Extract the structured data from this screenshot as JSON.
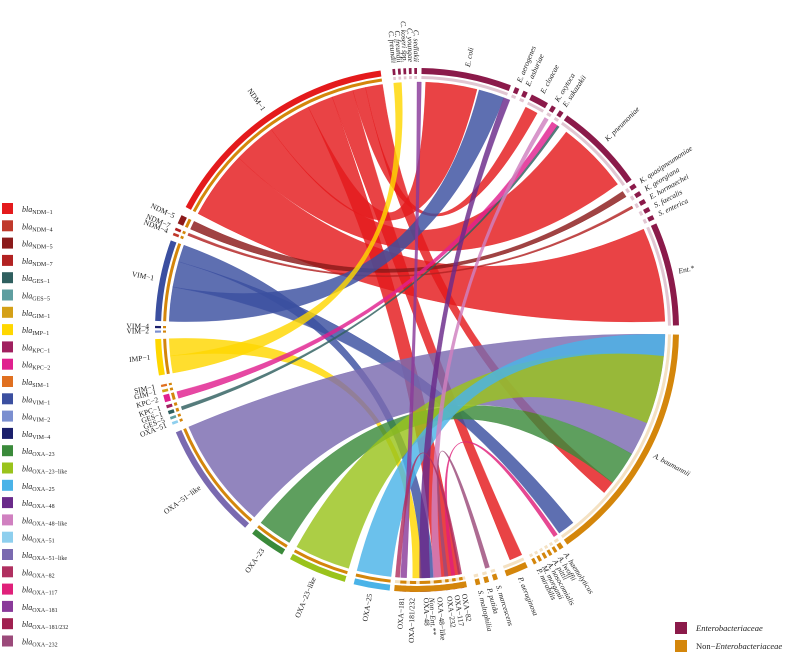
{
  "gene_legend": [
    {
      "prefix": "bla",
      "sub": "NDM−1",
      "color": "#e41a1c"
    },
    {
      "prefix": "bla",
      "sub": "NDM−4",
      "color": "#c0392b"
    },
    {
      "prefix": "bla",
      "sub": "NDM−5",
      "color": "#8b1a1a"
    },
    {
      "prefix": "bla",
      "sub": "NDM−7",
      "color": "#b22222"
    },
    {
      "prefix": "bla",
      "sub": "GES−1",
      "color": "#2f5f5f"
    },
    {
      "prefix": "bla",
      "sub": "GES−5",
      "color": "#5f9ea0"
    },
    {
      "prefix": "bla",
      "sub": "GIM−1",
      "color": "#d4a017"
    },
    {
      "prefix": "bla",
      "sub": "IMP−1",
      "color": "#ffd700"
    },
    {
      "prefix": "bla",
      "sub": "KPC−1",
      "color": "#a0205f"
    },
    {
      "prefix": "bla",
      "sub": "KPC−2",
      "color": "#e0208f"
    },
    {
      "prefix": "bla",
      "sub": "SIM−1",
      "color": "#e07020"
    },
    {
      "prefix": "bla",
      "sub": "VIM−1",
      "color": "#3b4fa0"
    },
    {
      "prefix": "bla",
      "sub": "VIM−2",
      "color": "#7b8fd0"
    },
    {
      "prefix": "bla",
      "sub": "VIM−4",
      "color": "#1a1f6b"
    },
    {
      "prefix": "bla",
      "sub": "OXA−23",
      "color": "#3a8a3a"
    },
    {
      "prefix": "bla",
      "sub": "OXA−23−like",
      "color": "#9ac31c"
    },
    {
      "prefix": "bla",
      "sub": "OXA−25",
      "color": "#4ab3e8"
    },
    {
      "prefix": "bla",
      "sub": "OXA−48",
      "color": "#6a2a8a"
    },
    {
      "prefix": "bla",
      "sub": "OXA−48−like",
      "color": "#d080c0"
    },
    {
      "prefix": "bla",
      "sub": "OXA−51",
      "color": "#8ecfee"
    },
    {
      "prefix": "bla",
      "sub": "OXA−51−like",
      "color": "#7a6ab0"
    },
    {
      "prefix": "bla",
      "sub": "OXA−82",
      "color": "#b03060"
    },
    {
      "prefix": "bla",
      "sub": "OXA−117",
      "color": "#e0207a"
    },
    {
      "prefix": "bla",
      "sub": "OXA−181",
      "color": "#8a3a9a"
    },
    {
      "prefix": "bla",
      "sub": "OXA−181/232",
      "color": "#a02050"
    },
    {
      "prefix": "bla",
      "sub": "OXA−232",
      "color": "#9b4a7a"
    }
  ],
  "category_legend": [
    {
      "label": "Enterobacteriaceae",
      "color": "#8b1a4a",
      "italic": true,
      "prefix": ""
    },
    {
      "label": "Enterobacteriaceae",
      "color": "#d4860b",
      "italic": true,
      "prefix": "Non−"
    }
  ],
  "gene_arcs": [
    {
      "label": "NDM−1",
      "start": -62,
      "end": -8,
      "color": "#e41a1c"
    },
    {
      "label": "NDM−5",
      "start": -66,
      "end": -64,
      "color": "#8b1a1a"
    },
    {
      "label": "NDM−7",
      "start": -67.6,
      "end": -67,
      "color": "#b22222"
    },
    {
      "label": "NDM−4",
      "start": -68.8,
      "end": -68.2,
      "color": "#c0392b"
    },
    {
      "label": "VIM−1",
      "start": -88,
      "end": -70,
      "color": "#3b4fa0"
    },
    {
      "label": "VIM−4",
      "start": -89.6,
      "end": -89.1,
      "color": "#1a1f6b"
    },
    {
      "label": "VIM−2",
      "start": -90.6,
      "end": -90.1,
      "color": "#7b8fd0"
    },
    {
      "label": "IMP−1",
      "start": -100,
      "end": -92,
      "color": "#ffd700"
    },
    {
      "label": "SIM−1",
      "start": -102.6,
      "end": -102.1,
      "color": "#e07020"
    },
    {
      "label": "GIM−1",
      "start": -103.8,
      "end": -103.2,
      "color": "#d4a017"
    },
    {
      "label": "KPC−2",
      "start": -106,
      "end": -104.4,
      "color": "#e0208f"
    },
    {
      "label": "KPC−1",
      "start": -107.4,
      "end": -106.7,
      "color": "#a0205f"
    },
    {
      "label": "GES−1",
      "start": -108.8,
      "end": -108,
      "color": "#2f5f5f"
    },
    {
      "label": "GES−5",
      "start": -110,
      "end": -109.4,
      "color": "#5f9ea0"
    },
    {
      "label": "OXA−51",
      "start": -111.2,
      "end": -110.6,
      "color": "#8ecfee"
    },
    {
      "label": "OXA−51−like",
      "start": -139,
      "end": -113,
      "color": "#7a6ab0"
    },
    {
      "label": "OXA−23",
      "start": -149,
      "end": -141,
      "color": "#3a8a3a"
    },
    {
      "label": "OXA−23−like",
      "start": -164,
      "end": -151,
      "color": "#9ac31c"
    },
    {
      "label": "OXA−25",
      "start": -174,
      "end": -166,
      "color": "#4ab3e8"
    },
    {
      "label": "OXA−181",
      "start": -177.6,
      "end": -176.2,
      "color": "#8a3a9a"
    },
    {
      "label": "OXA−181/232",
      "start": -179.8,
      "end": -178.4,
      "color": "#a02050"
    },
    {
      "label": "OXA−48",
      "start": -183,
      "end": -180.6,
      "color": "#6a2a8a"
    },
    {
      "label": "OXA−48−like",
      "start": -185.6,
      "end": -183.8,
      "color": "#d080c0"
    },
    {
      "label": "OXA−232",
      "start": -187.2,
      "end": -186.4,
      "color": "#9b4a7a"
    },
    {
      "label": "OXA−117",
      "start": -188.8,
      "end": -188,
      "color": "#e0207a"
    },
    {
      "label": "OXA−82",
      "start": -190.4,
      "end": -189.6,
      "color": "#b03060"
    }
  ],
  "organism_arcs": [
    {
      "label": "C. freundii",
      "start": -5.4,
      "end": -4.8,
      "group": "ent"
    },
    {
      "label": "C. freundii",
      "start": -4.2,
      "end": -3.6,
      "group": "ent"
    },
    {
      "label": "C. koseri spp.",
      "start": -3,
      "end": -2.4,
      "group": "ent"
    },
    {
      "label": "C. youngae",
      "start": -1.8,
      "end": -1.2,
      "group": "ent"
    },
    {
      "label": "C. sedlakii",
      "start": -0.6,
      "end": 0,
      "group": "ent"
    },
    {
      "label": "E. coli",
      "start": 1,
      "end": 21,
      "group": "ent"
    },
    {
      "label": "E. aerogenes",
      "start": 22,
      "end": 23,
      "group": "ent"
    },
    {
      "label": "E. asburiae",
      "start": 24,
      "end": 25,
      "group": "ent"
    },
    {
      "label": "E. cloacae",
      "start": 26,
      "end": 30,
      "group": "ent"
    },
    {
      "label": "K. oxytoca",
      "start": 31,
      "end": 32,
      "group": "ent"
    },
    {
      "label": "E. sakazakii",
      "start": 33,
      "end": 34,
      "group": "ent"
    },
    {
      "label": "K. pneumoniae",
      "start": 35,
      "end": 55,
      "group": "ent"
    },
    {
      "label": "K. quasipneumoniae",
      "start": 56,
      "end": 57,
      "group": "ent"
    },
    {
      "label": "K. georgiana",
      "start": 58,
      "end": 59,
      "group": "ent"
    },
    {
      "label": "E. hormaechei",
      "start": 60,
      "end": 61,
      "group": "ent"
    },
    {
      "label": "S. faecalis",
      "start": 62,
      "end": 63,
      "group": "ent"
    },
    {
      "label": "S. enterica",
      "start": 64,
      "end": 65,
      "group": "ent"
    },
    {
      "label": "Ent.*",
      "start": 66,
      "end": 89,
      "group": "ent"
    },
    {
      "label": "A. baumannii",
      "start": 91,
      "end": 145,
      "group": "non"
    },
    {
      "label": "A. haemolyticus",
      "start": 146,
      "end": 147,
      "group": "non"
    },
    {
      "label": "A. lwoffii",
      "start": 147.6,
      "end": 148.3,
      "group": "non"
    },
    {
      "label": "A. pittii",
      "start": 148.9,
      "end": 149.6,
      "group": "non"
    },
    {
      "label": "A. nosocomialis",
      "start": 150.2,
      "end": 150.9,
      "group": "non"
    },
    {
      "label": "M. morganii",
      "start": 151.5,
      "end": 152.2,
      "group": "non"
    },
    {
      "label": "P. mirabilis",
      "start": 152.8,
      "end": 153.5,
      "group": "non"
    },
    {
      "label": "P. aeruginosa",
      "start": 155,
      "end": 160,
      "group": "non"
    },
    {
      "label": "S. marcescens",
      "start": 162,
      "end": 163,
      "group": "non"
    },
    {
      "label": "P. putida",
      "start": 164,
      "end": 165,
      "group": "non"
    },
    {
      "label": "S. maltophilia",
      "start": 166,
      "end": 167,
      "group": "non"
    },
    {
      "label": "Non−Ent.**",
      "start": 169,
      "end": 185,
      "group": "non"
    }
  ],
  "group_colors": {
    "ent": "#8b1a4a",
    "non": "#d4860b"
  },
  "ribbons": [
    {
      "gene": "NDM−1",
      "g": [
        -62,
        -46
      ],
      "o": [
        66,
        88
      ],
      "color": "#e41a1c"
    },
    {
      "gene": "NDM−1",
      "g": [
        -46,
        -36
      ],
      "o": [
        37,
        54
      ],
      "color": "#e41a1c"
    },
    {
      "gene": "NDM−1",
      "g": [
        -36,
        -26
      ],
      "o": [
        2,
        14
      ],
      "color": "#e41a1c"
    },
    {
      "gene": "NDM−1",
      "g": [
        -26,
        -20
      ],
      "o": [
        170,
        176
      ],
      "color": "#e41a1c"
    },
    {
      "gene": "NDM−1",
      "g": [
        -20,
        -15
      ],
      "o": [
        155,
        158
      ],
      "color": "#e41a1c"
    },
    {
      "gene": "NDM−1",
      "g": [
        -15,
        -12
      ],
      "o": [
        26,
        29
      ],
      "color": "#e41a1c"
    },
    {
      "gene": "NDM−1",
      "g": [
        -12,
        -8
      ],
      "o": [
        128,
        131
      ],
      "color": "#e41a1c"
    },
    {
      "gene": "NDM−5",
      "g": [
        -66,
        -64
      ],
      "o": [
        56,
        57.5
      ],
      "color": "#8b1a1a"
    },
    {
      "gene": "NDM−7",
      "g": [
        -67.6,
        -67
      ],
      "o": [
        60,
        60.6
      ],
      "color": "#b22222"
    },
    {
      "gene": "VIM−1",
      "g": [
        -88,
        -80
      ],
      "o": [
        14.5,
        20.5
      ],
      "color": "#3b4fa0"
    },
    {
      "gene": "VIM−1",
      "g": [
        -80,
        -74
      ],
      "o": [
        141,
        145
      ],
      "color": "#3b4fa0"
    },
    {
      "gene": "VIM−1",
      "g": [
        -74,
        -70
      ],
      "o": [
        176,
        179
      ],
      "color": "#3b4fa0"
    },
    {
      "gene": "IMP−1",
      "g": [
        -100,
        -96
      ],
      "o": [
        -5.4,
        -3.6
      ],
      "color": "#ffd700"
    },
    {
      "gene": "IMP−1",
      "g": [
        -96,
        -92
      ],
      "o": [
        179,
        181
      ],
      "color": "#ffd700"
    },
    {
      "gene": "KPC−2",
      "g": [
        -106,
        -104.4
      ],
      "o": [
        33,
        34.5
      ],
      "color": "#e0208f"
    },
    {
      "gene": "GES−1",
      "g": [
        -108.8,
        -108
      ],
      "o": [
        34.5,
        35
      ],
      "color": "#2f5f5f"
    },
    {
      "gene": "OXA−51−like",
      "g": [
        -139,
        -113
      ],
      "o": [
        91,
        120
      ],
      "color": "#7a6ab0"
    },
    {
      "gene": "OXA−23",
      "g": [
        -149,
        -141
      ],
      "o": [
        120,
        128
      ],
      "color": "#3a8a3a"
    },
    {
      "gene": "OXA−23−like",
      "g": [
        -164,
        -151
      ],
      "o": [
        96,
        112
      ],
      "color": "#9ac31c"
    },
    {
      "gene": "OXA−25",
      "g": [
        -174,
        -166
      ],
      "o": [
        91,
        96
      ],
      "color": "#4ab3e8"
    },
    {
      "gene": "OXA−48",
      "g": [
        -183,
        -180.6
      ],
      "o": [
        20.5,
        22
      ],
      "color": "#6a2a8a"
    },
    {
      "gene": "OXA−181",
      "g": [
        -177.6,
        -176.2
      ],
      "o": [
        0,
        1
      ],
      "color": "#8a3a9a"
    },
    {
      "gene": "OXA−48−like",
      "g": [
        -185.6,
        -183.8
      ],
      "o": [
        31,
        32
      ],
      "color": "#d080c0"
    },
    {
      "gene": "OXA−232",
      "g": [
        -187.2,
        -186.4
      ],
      "o": [
        163,
        164
      ],
      "color": "#9b4a7a"
    },
    {
      "gene": "OXA−117",
      "g": [
        -188.8,
        -188
      ],
      "o": [
        145.5,
        146.5
      ],
      "color": "#e0207a"
    },
    {
      "gene": "OXA−82",
      "g": [
        -190.4,
        -189.6
      ],
      "o": [
        184,
        185
      ],
      "color": "#b03060"
    }
  ]
}
